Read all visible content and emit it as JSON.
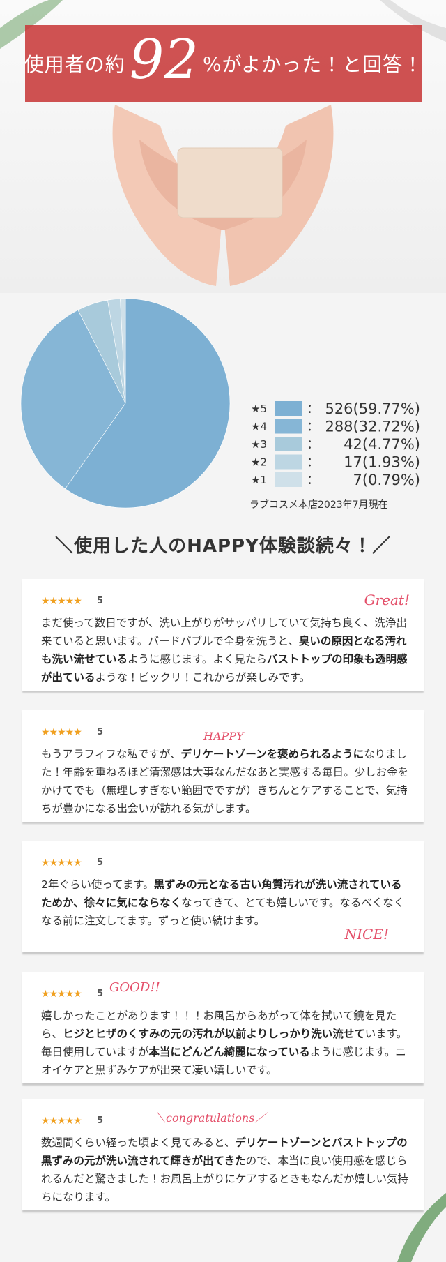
{
  "header": {
    "prefix": "使用者の約",
    "number": 92,
    "suffix": "%がよかった！と回答！"
  },
  "chart_data": {
    "type": "pie",
    "categories": [
      "★5",
      "★4",
      "★3",
      "★2",
      "★1"
    ],
    "values": [
      526,
      288,
      42,
      17,
      7
    ],
    "value_labels": [
      "526(59.77%)",
      "288(32.72%)",
      "42(4.77%)",
      "17(1.93%)",
      "7(0.79%)"
    ],
    "colors": [
      "#7db0d3",
      "#86b6d6",
      "#a8cadb",
      "#bdd6e3",
      "#cfe0e9"
    ],
    "separator": "：",
    "note": "ラブコスメ本店2023年7月現在"
  },
  "section_title": "＼使用した人のHAPPY体験談続々！／",
  "reviews": [
    {
      "stars": "★★★★★",
      "rating": 5,
      "deco": "Great!",
      "body": [
        {
          "text": "まだ使って数日ですが、洗い上がりがサッパリしていて気持ち良く、洗浄出来ていると思います。バードバブルで全身を洗うと、",
          "bold": false
        },
        {
          "text": "臭いの原因となる汚れも洗い流せている",
          "bold": true
        },
        {
          "text": "ように感じます。よく見たら",
          "bold": false
        },
        {
          "text": "バストトップの印象も透明感が出ている",
          "bold": true
        },
        {
          "text": "ような！ビックリ！これからが楽しみです。",
          "bold": false
        }
      ]
    },
    {
      "stars": "★★★★★",
      "rating": 5,
      "deco": "HAPPY",
      "body": [
        {
          "text": "もうアラフィフな私ですが、",
          "bold": false
        },
        {
          "text": "デリケートゾーンを褒められるように",
          "bold": true
        },
        {
          "text": "なりました！年齢を重ねるほど清潔感は大事なんだなあと実感する毎日。少しお金をかけてでも（無理しすぎない範囲でですが）きちんとケアすることで、気持ちが豊かになる出会いが訪れる気がします。",
          "bold": false
        }
      ]
    },
    {
      "stars": "★★★★★",
      "rating": 5,
      "deco": "NICE!",
      "body": [
        {
          "text": "2年ぐらい使ってます。",
          "bold": false
        },
        {
          "text": "黒ずみの元となる古い角質汚れが洗い流されているためか、徐々に気にならなく",
          "bold": true
        },
        {
          "text": "なってきて、とても嬉しいです。なるべくなくなる前に注文してます。ずっと使い続けます。",
          "bold": false
        }
      ]
    },
    {
      "stars": "★★★★★",
      "rating": 5,
      "deco": "GOOD!!",
      "body": [
        {
          "text": "嬉しかったことがあります！！！お風呂からあがって体を拭いて鏡を見たら、",
          "bold": false
        },
        {
          "text": "ヒジとヒザのくすみの元の汚れが以前よりしっかり洗い流せて",
          "bold": true
        },
        {
          "text": "います。毎日使用していますが",
          "bold": false
        },
        {
          "text": "本当にどんどん綺麗になっている",
          "bold": true
        },
        {
          "text": "ように感じます。ニオイケアと黒ずみケアが出来て凄い嬉しいです。",
          "bold": false
        }
      ]
    },
    {
      "stars": "★★★★★",
      "rating": 5,
      "deco": "＼congratulations／",
      "body": [
        {
          "text": "数週間くらい経った頃よく見てみると、",
          "bold": false
        },
        {
          "text": "デリケートゾーンとバストトップの黒ずみの元が洗い流されて輝きが出てきた",
          "bold": true
        },
        {
          "text": "ので、本当に良い使用感を感じられるんだと驚きました！お風呂上がりにケアするときもなんだか嬉しい気持ちになります。",
          "bold": false
        }
      ]
    }
  ]
}
